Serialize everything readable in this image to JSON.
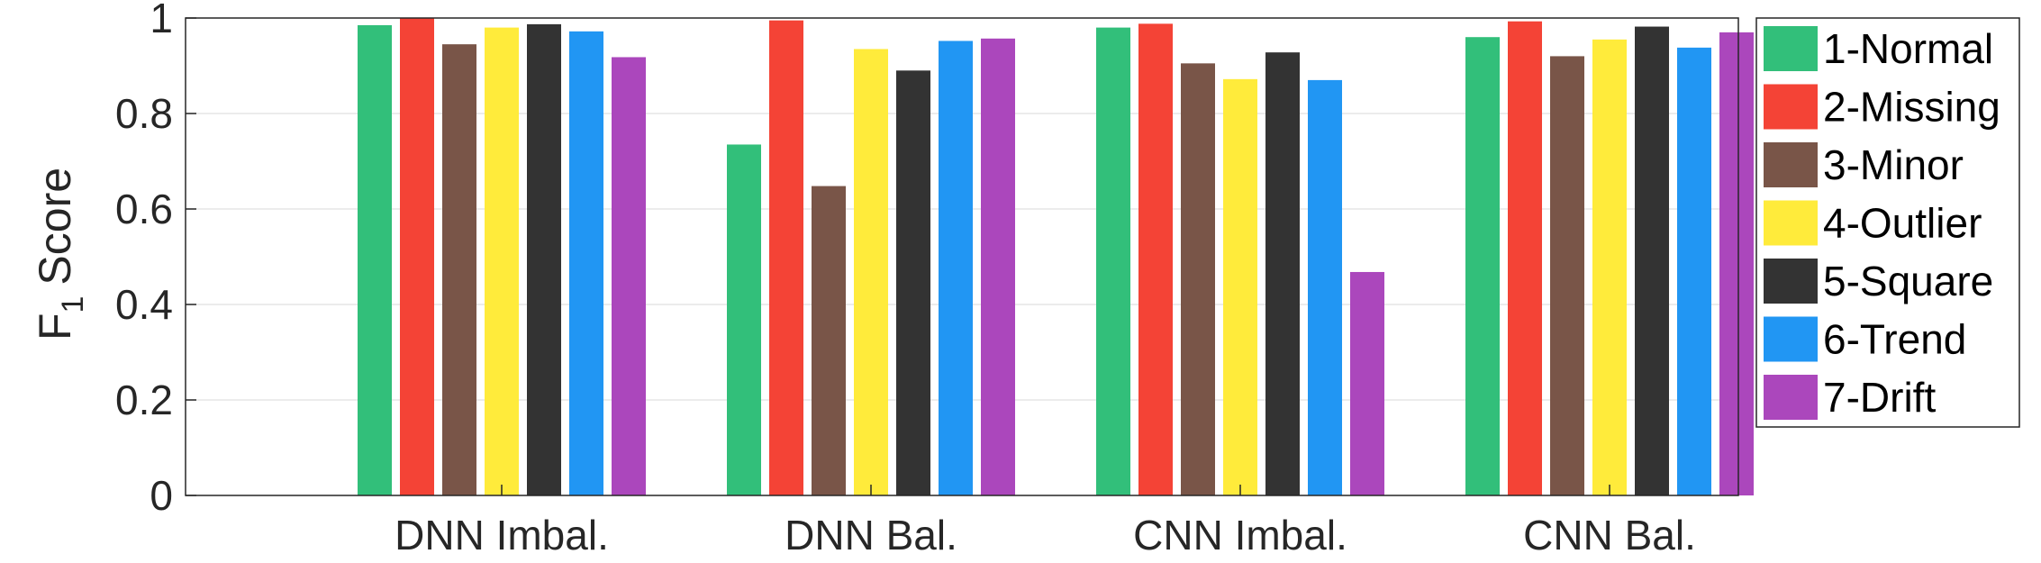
{
  "chart_data": {
    "type": "bar",
    "title": "",
    "xlabel": "",
    "ylabel": "F",
    "ylabel_subscript": "1",
    "ylabel_suffix": "Score",
    "ylim": [
      0,
      1
    ],
    "yticks": [
      0,
      0.2,
      0.4,
      0.6,
      0.8,
      1
    ],
    "ytick_labels": [
      "0",
      "0.2",
      "0.4",
      "0.6",
      "0.8",
      "1"
    ],
    "grid": true,
    "legend_position": "right-outside",
    "categories": [
      "DNN Imbal.",
      "DNN Bal.",
      "CNN Imbal.",
      "CNN Bal."
    ],
    "series": [
      {
        "name": "1-Normal",
        "color": "#32bf7a",
        "values": [
          0.985,
          0.735,
          0.98,
          0.96
        ]
      },
      {
        "name": "2-Missing",
        "color": "#f44336",
        "values": [
          1.0,
          0.995,
          0.988,
          0.993
        ]
      },
      {
        "name": "3-Minor",
        "color": "#795548",
        "values": [
          0.945,
          0.648,
          0.905,
          0.92
        ]
      },
      {
        "name": "4-Outlier",
        "color": "#ffeb3b",
        "values": [
          0.98,
          0.935,
          0.872,
          0.955
        ]
      },
      {
        "name": "5-Square",
        "color": "#333333",
        "values": [
          0.987,
          0.89,
          0.928,
          0.982
        ]
      },
      {
        "name": "6-Trend",
        "color": "#2196f3",
        "values": [
          0.972,
          0.952,
          0.87,
          0.938
        ]
      },
      {
        "name": "7-Drift",
        "color": "#ab47bc",
        "values": [
          0.918,
          0.957,
          0.468,
          0.97
        ]
      }
    ]
  }
}
